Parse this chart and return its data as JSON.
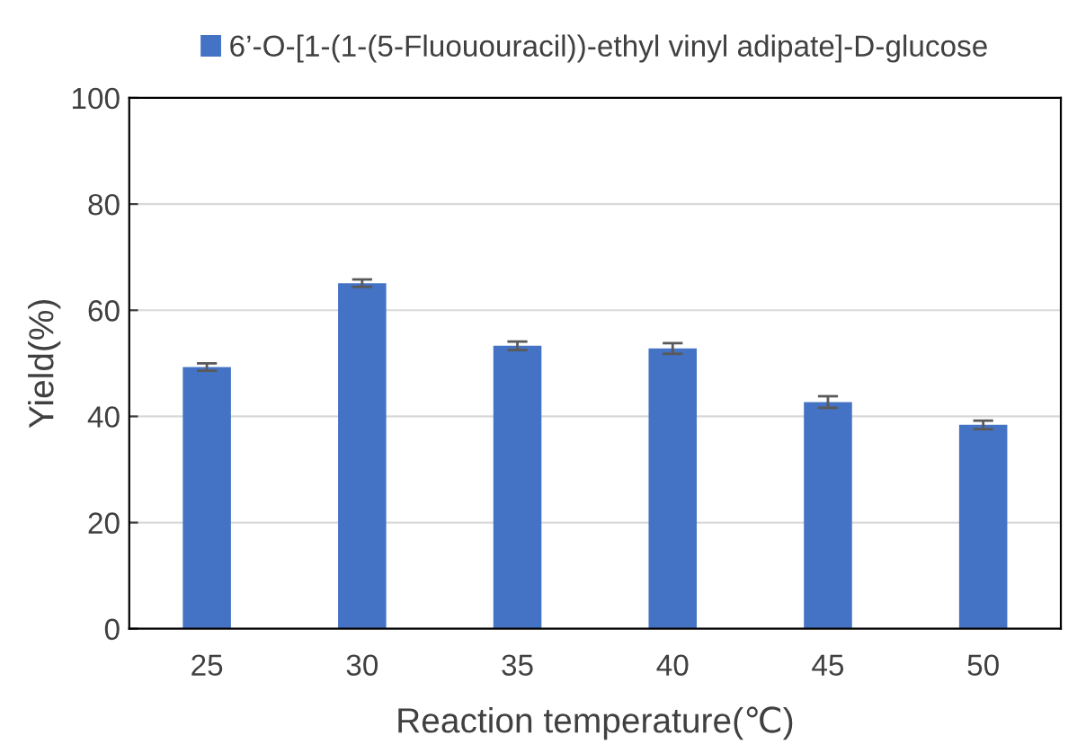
{
  "chart_data": {
    "type": "bar",
    "xlabel": "Reaction temperature(℃)",
    "ylabel": "Yield(%)",
    "categories": [
      "25",
      "30",
      "35",
      "40",
      "45",
      "50"
    ],
    "series": [
      {
        "name": "6’-O-[1-(1-(5-Fluououracil))-ethyl vinyl adipate]-D-glucose",
        "color": "#4472c4",
        "values": [
          49.3,
          65.1,
          53.3,
          52.8,
          42.7,
          38.4
        ],
        "errors": [
          0.7,
          0.7,
          0.8,
          1.0,
          1.1,
          0.8
        ]
      }
    ],
    "ylim": [
      0,
      100
    ],
    "yticks": [
      0,
      20,
      40,
      60,
      80,
      100
    ],
    "grid": "y",
    "legend": "top"
  }
}
